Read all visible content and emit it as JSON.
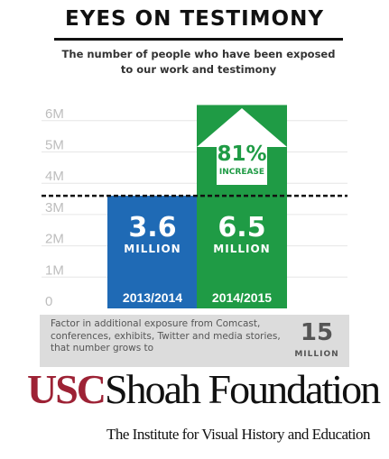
{
  "title": "EYES ON TESTIMONY",
  "subtitle": "The number of people who have been exposed to our work and testimony",
  "chart_data": {
    "type": "bar",
    "categories": [
      "2013/2014",
      "2014/2015"
    ],
    "values": [
      3.6,
      6.5
    ],
    "ylim": [
      0,
      6.5
    ],
    "yticks": [
      "0",
      "1M",
      "2M",
      "3M",
      "4M",
      "5M",
      "6M"
    ],
    "bar_labels": [
      {
        "value": "3.6",
        "unit": "MILLION"
      },
      {
        "value": "6.5",
        "unit": "MILLION"
      }
    ],
    "reference_line": 3.6,
    "grid": true,
    "callout": {
      "percent": "81%",
      "text": "INCREASE"
    },
    "colors": {
      "bar1": "#1f6ab5",
      "bar2": "#1f9b45",
      "axis_text": "#bdbdbd",
      "grid": "#e6e6e6"
    }
  },
  "note": {
    "text": "Factor in additional exposure from Comcast, conferences, exhibits, Twitter and media stories, that number grows to",
    "value": "15",
    "unit": "MILLION"
  },
  "logo": {
    "usc": "USC",
    "name": "Shoah Foundation",
    "subtitle": "The Institute for Visual History and Education",
    "color_usc": "#9d2235"
  }
}
